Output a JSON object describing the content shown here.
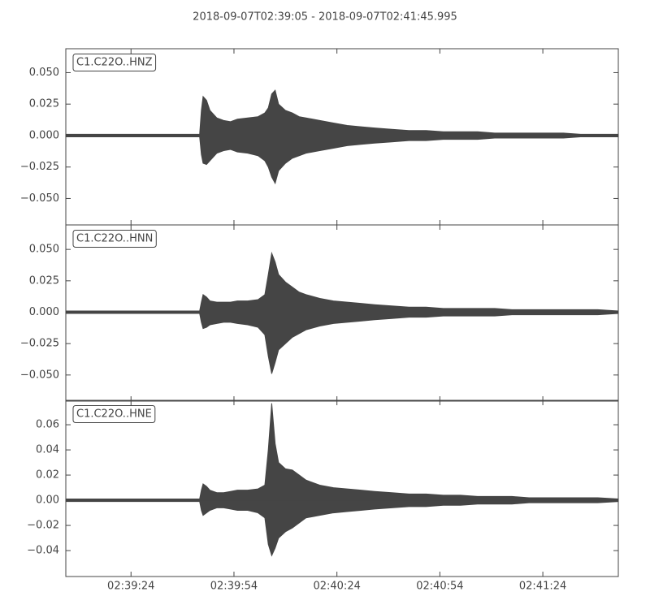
{
  "chart_data": [
    {
      "type": "band",
      "title": "2018-09-07T02:39:05  -  2018-09-07T02:41:45.995",
      "label": "C1.C22O..HNZ",
      "xlim": [
        "02:39:05",
        "02:41:45.995"
      ],
      "x": [
        "02:39:05",
        "02:39:44",
        "02:39:44.5",
        "02:39:45",
        "02:39:46",
        "02:39:47",
        "02:39:49",
        "02:39:51",
        "02:39:53",
        "02:39:55",
        "02:39:58",
        "02:40:01",
        "02:40:03",
        "02:40:04",
        "02:40:05",
        "02:40:06",
        "02:40:07",
        "02:40:09",
        "02:40:11",
        "02:40:13",
        "02:40:15",
        "02:40:19",
        "02:40:23",
        "02:40:27",
        "02:40:31",
        "02:40:35",
        "02:40:40",
        "02:40:45",
        "02:40:50",
        "02:40:55",
        "02:41:00",
        "02:41:05",
        "02:41:10",
        "02:41:15",
        "02:41:20",
        "02:41:25",
        "02:41:30",
        "02:41:35",
        "02:41:40",
        "02:41:45.995"
      ],
      "series": [
        {
          "color": "#454545",
          "values": [
            0.001,
            0.001,
            0.02,
            0.031,
            0.028,
            0.02,
            0.014,
            0.012,
            0.011,
            0.013,
            0.014,
            0.015,
            0.018,
            0.022,
            0.033,
            0.036,
            0.025,
            0.02,
            0.018,
            0.015,
            0.014,
            0.012,
            0.01,
            0.008,
            0.007,
            0.006,
            0.005,
            0.004,
            0.004,
            0.003,
            0.003,
            0.003,
            0.002,
            0.002,
            0.002,
            0.002,
            0.002,
            0.001,
            0.001,
            0.001
          ]
        },
        {
          "color": "#454545",
          "values": [
            -0.001,
            -0.001,
            -0.015,
            -0.022,
            -0.023,
            -0.02,
            -0.014,
            -0.012,
            -0.011,
            -0.013,
            -0.014,
            -0.016,
            -0.02,
            -0.025,
            -0.033,
            -0.038,
            -0.028,
            -0.022,
            -0.018,
            -0.016,
            -0.014,
            -0.012,
            -0.01,
            -0.008,
            -0.007,
            -0.006,
            -0.005,
            -0.004,
            -0.004,
            -0.003,
            -0.003,
            -0.003,
            -0.002,
            -0.002,
            -0.002,
            -0.002,
            -0.002,
            -0.001,
            -0.001,
            -0.001
          ]
        }
      ],
      "ylim": [
        -0.071,
        0.069
      ],
      "yticks": [
        {
          "value": 0.05,
          "label": "0.050"
        },
        {
          "value": 0.025,
          "label": "0.025"
        },
        {
          "value": 0,
          "label": "0.000"
        },
        {
          "value": -0.025,
          "label": "−0.025"
        },
        {
          "value": -0.05,
          "label": "−0.050"
        }
      ]
    },
    {
      "type": "band",
      "label": "C1.C22O..HNN",
      "xlim": [
        "02:39:05",
        "02:41:45.995"
      ],
      "x": [
        "02:39:05",
        "02:39:44",
        "02:39:44.5",
        "02:39:45",
        "02:39:46",
        "02:39:47",
        "02:39:49",
        "02:39:51",
        "02:39:53",
        "02:39:55",
        "02:39:58",
        "02:40:01",
        "02:40:03",
        "02:40:04",
        "02:40:05",
        "02:40:06",
        "02:40:07",
        "02:40:09",
        "02:40:11",
        "02:40:13",
        "02:40:15",
        "02:40:19",
        "02:40:23",
        "02:40:27",
        "02:40:31",
        "02:40:35",
        "02:40:40",
        "02:40:45",
        "02:40:50",
        "02:40:55",
        "02:41:00",
        "02:41:05",
        "02:41:10",
        "02:41:15",
        "02:41:20",
        "02:41:25",
        "02:41:30",
        "02:41:35",
        "02:41:40",
        "02:41:45.995"
      ],
      "series": [
        {
          "color": "#454545",
          "values": [
            0.001,
            0.001,
            0.008,
            0.014,
            0.012,
            0.009,
            0.008,
            0.008,
            0.008,
            0.009,
            0.009,
            0.01,
            0.014,
            0.03,
            0.047,
            0.04,
            0.03,
            0.024,
            0.02,
            0.016,
            0.014,
            0.011,
            0.009,
            0.008,
            0.007,
            0.006,
            0.005,
            0.004,
            0.004,
            0.003,
            0.003,
            0.003,
            0.003,
            0.002,
            0.002,
            0.002,
            0.002,
            0.002,
            0.002,
            0.001
          ]
        },
        {
          "color": "#454545",
          "values": [
            -0.001,
            -0.001,
            -0.008,
            -0.013,
            -0.012,
            -0.01,
            -0.009,
            -0.008,
            -0.008,
            -0.009,
            -0.01,
            -0.012,
            -0.018,
            -0.035,
            -0.049,
            -0.04,
            -0.03,
            -0.025,
            -0.02,
            -0.017,
            -0.014,
            -0.011,
            -0.009,
            -0.008,
            -0.007,
            -0.006,
            -0.005,
            -0.004,
            -0.004,
            -0.003,
            -0.003,
            -0.003,
            -0.003,
            -0.002,
            -0.002,
            -0.002,
            -0.002,
            -0.002,
            -0.002,
            -0.001
          ]
        }
      ],
      "ylim": [
        -0.0708,
        0.0695
      ],
      "yticks": [
        {
          "value": 0.05,
          "label": "0.050"
        },
        {
          "value": 0.025,
          "label": "0.025"
        },
        {
          "value": 0,
          "label": "0.000"
        },
        {
          "value": -0.025,
          "label": "−0.025"
        },
        {
          "value": -0.05,
          "label": "−0.050"
        }
      ]
    },
    {
      "type": "band",
      "label": "C1.C22O..HNE",
      "xlim": [
        "02:39:05",
        "02:41:45.995"
      ],
      "xticks": [
        "02:39:24",
        "02:39:54",
        "02:40:24",
        "02:40:54",
        "02:41:24"
      ],
      "x": [
        "02:39:05",
        "02:39:44",
        "02:39:44.5",
        "02:39:45",
        "02:39:46",
        "02:39:47",
        "02:39:49",
        "02:39:51",
        "02:39:53",
        "02:39:55",
        "02:39:58",
        "02:40:01",
        "02:40:03",
        "02:40:04",
        "02:40:05",
        "02:40:06",
        "02:40:07",
        "02:40:09",
        "02:40:11",
        "02:40:13",
        "02:40:15",
        "02:40:19",
        "02:40:23",
        "02:40:27",
        "02:40:31",
        "02:40:35",
        "02:40:40",
        "02:40:45",
        "02:40:50",
        "02:40:55",
        "02:41:00",
        "02:41:05",
        "02:41:10",
        "02:41:15",
        "02:41:20",
        "02:41:25",
        "02:41:30",
        "02:41:35",
        "02:41:40",
        "02:41:45.995"
      ],
      "series": [
        {
          "color": "#454545",
          "values": [
            0.001,
            0.001,
            0.008,
            0.013,
            0.011,
            0.008,
            0.006,
            0.006,
            0.007,
            0.008,
            0.008,
            0.009,
            0.012,
            0.04,
            0.077,
            0.045,
            0.03,
            0.025,
            0.024,
            0.02,
            0.016,
            0.012,
            0.01,
            0.009,
            0.008,
            0.007,
            0.006,
            0.005,
            0.005,
            0.004,
            0.004,
            0.003,
            0.003,
            0.003,
            0.002,
            0.002,
            0.002,
            0.002,
            0.002,
            0.001
          ]
        },
        {
          "color": "#454545",
          "values": [
            -0.001,
            -0.001,
            -0.008,
            -0.012,
            -0.01,
            -0.008,
            -0.006,
            -0.006,
            -0.007,
            -0.008,
            -0.008,
            -0.01,
            -0.014,
            -0.035,
            -0.044,
            -0.038,
            -0.03,
            -0.025,
            -0.022,
            -0.018,
            -0.014,
            -0.012,
            -0.01,
            -0.009,
            -0.008,
            -0.007,
            -0.006,
            -0.005,
            -0.005,
            -0.004,
            -0.004,
            -0.003,
            -0.003,
            -0.003,
            -0.002,
            -0.002,
            -0.002,
            -0.002,
            -0.002,
            -0.001
          ]
        }
      ],
      "ylim": [
        -0.0606,
        0.0794
      ],
      "yticks": [
        {
          "value": 0.06,
          "label": "0.06"
        },
        {
          "value": 0.04,
          "label": "0.04"
        },
        {
          "value": 0.02,
          "label": "0.02"
        },
        {
          "value": 0,
          "label": "0.00"
        },
        {
          "value": -0.02,
          "label": "−0.02"
        },
        {
          "value": -0.04,
          "label": "−0.04"
        }
      ]
    }
  ]
}
